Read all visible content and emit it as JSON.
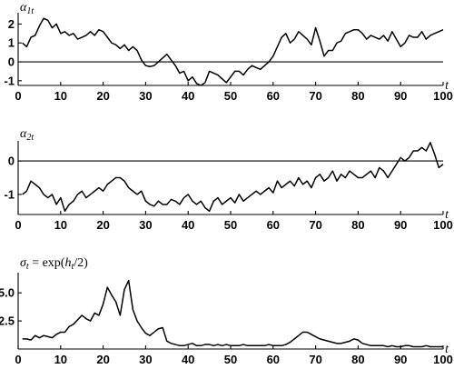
{
  "chart_data": [
    {
      "type": "line",
      "ylabel": "α1t",
      "xlabel": "t",
      "xlim": [
        0,
        100
      ],
      "ylim": [
        -1.25,
        2.6
      ],
      "xticks": [
        0,
        10,
        20,
        30,
        40,
        50,
        60,
        70,
        80,
        90,
        100
      ],
      "yticks": [
        -1,
        0,
        1,
        2
      ],
      "ref_line": 0,
      "series": [
        {
          "x": [
            1,
            2,
            3,
            4,
            5,
            6,
            7,
            8,
            9,
            10,
            11,
            12,
            13,
            14,
            15,
            16,
            17,
            18,
            19,
            20,
            21,
            22,
            23,
            24,
            25,
            26,
            27,
            28,
            29,
            30,
            31,
            32,
            33,
            34,
            35,
            36,
            37,
            38,
            39,
            40,
            41,
            42,
            43,
            44,
            45,
            46,
            47,
            48,
            49,
            50,
            51,
            52,
            53,
            54,
            55,
            56,
            57,
            58,
            59,
            60,
            61,
            62,
            63,
            64,
            65,
            66,
            67,
            68,
            69,
            70,
            71,
            72,
            73,
            74,
            75,
            76,
            77,
            78,
            79,
            80,
            81,
            82,
            83,
            84,
            85,
            86,
            87,
            88,
            89,
            90,
            91,
            92,
            93,
            94,
            95,
            96,
            97,
            98,
            99,
            100
          ],
          "values": [
            1.0,
            0.8,
            1.3,
            1.4,
            1.9,
            2.3,
            2.2,
            1.8,
            2.0,
            1.5,
            1.6,
            1.4,
            1.5,
            1.2,
            1.3,
            1.4,
            1.6,
            1.4,
            1.7,
            1.6,
            1.3,
            1.0,
            0.9,
            0.7,
            0.9,
            0.6,
            0.8,
            0.6,
            0.1,
            -0.2,
            -0.25,
            -0.2,
            0.0,
            0.2,
            0.4,
            0.1,
            -0.2,
            -0.6,
            -0.5,
            -1.0,
            -0.8,
            -1.15,
            -1.25,
            -1.1,
            -0.5,
            -0.6,
            -0.7,
            -0.9,
            -1.1,
            -0.8,
            -0.5,
            -0.5,
            -0.7,
            -0.4,
            -0.2,
            -0.3,
            -0.4,
            -0.2,
            0.0,
            0.3,
            0.8,
            1.3,
            1.5,
            1.0,
            1.2,
            1.6,
            1.4,
            1.2,
            0.9,
            1.8,
            1.1,
            0.3,
            0.6,
            0.6,
            1.0,
            1.1,
            1.5,
            1.6,
            1.7,
            1.7,
            1.5,
            1.2,
            1.4,
            1.3,
            1.2,
            1.4,
            1.1,
            1.6,
            1.2,
            0.8,
            1.0,
            1.4,
            1.3,
            1.3,
            1.6,
            1.2,
            1.4,
            1.5,
            1.6,
            1.7
          ]
        }
      ]
    },
    {
      "type": "line",
      "ylabel": "α2t",
      "xlabel": "t",
      "xlim": [
        0,
        100
      ],
      "ylim": [
        -1.6,
        0.6
      ],
      "xticks": [
        0,
        10,
        20,
        30,
        40,
        50,
        60,
        70,
        80,
        90,
        100
      ],
      "yticks": [
        -1,
        0
      ],
      "ref_line": 0,
      "series": [
        {
          "x": [
            1,
            2,
            3,
            4,
            5,
            6,
            7,
            8,
            9,
            10,
            11,
            12,
            13,
            14,
            15,
            16,
            17,
            18,
            19,
            20,
            21,
            22,
            23,
            24,
            25,
            26,
            27,
            28,
            29,
            30,
            31,
            32,
            33,
            34,
            35,
            36,
            37,
            38,
            39,
            40,
            41,
            42,
            43,
            44,
            45,
            46,
            47,
            48,
            49,
            50,
            51,
            52,
            53,
            54,
            55,
            56,
            57,
            58,
            59,
            60,
            61,
            62,
            63,
            64,
            65,
            66,
            67,
            68,
            69,
            70,
            71,
            72,
            73,
            74,
            75,
            76,
            77,
            78,
            79,
            80,
            81,
            82,
            83,
            84,
            85,
            86,
            87,
            88,
            89,
            90,
            91,
            92,
            93,
            94,
            95,
            96,
            97,
            98,
            99,
            100
          ],
          "values": [
            -1.0,
            -0.9,
            -0.6,
            -0.7,
            -0.8,
            -1.0,
            -1.1,
            -1.0,
            -1.3,
            -1.1,
            -1.5,
            -1.3,
            -1.2,
            -1.0,
            -0.9,
            -1.1,
            -1.0,
            -0.9,
            -0.8,
            -0.9,
            -0.7,
            -0.6,
            -0.5,
            -0.5,
            -0.6,
            -0.8,
            -0.9,
            -1.0,
            -0.9,
            -1.2,
            -1.3,
            -1.35,
            -1.2,
            -1.3,
            -1.3,
            -1.15,
            -1.2,
            -1.3,
            -1.1,
            -1.0,
            -1.2,
            -1.3,
            -1.2,
            -1.4,
            -1.5,
            -1.2,
            -1.1,
            -1.3,
            -1.2,
            -1.1,
            -1.25,
            -1.0,
            -1.2,
            -1.1,
            -1.0,
            -0.9,
            -1.0,
            -0.9,
            -0.8,
            -0.95,
            -0.6,
            -0.8,
            -0.7,
            -0.6,
            -0.75,
            -0.5,
            -0.7,
            -0.6,
            -0.8,
            -0.5,
            -0.4,
            -0.6,
            -0.5,
            -0.3,
            -0.6,
            -0.4,
            -0.5,
            -0.3,
            -0.4,
            -0.5,
            -0.5,
            -0.4,
            -0.3,
            -0.5,
            -0.2,
            -0.3,
            -0.5,
            -0.3,
            -0.1,
            0.1,
            0.0,
            0.1,
            0.3,
            0.3,
            0.4,
            0.3,
            0.55,
            0.2,
            -0.2,
            -0.1
          ]
        }
      ]
    },
    {
      "type": "line",
      "ylabel": "σt = exp(ht/2)",
      "xlabel": "t",
      "xlim": [
        0,
        100
      ],
      "ylim": [
        0,
        6.8
      ],
      "xticks": [
        0,
        10,
        20,
        30,
        40,
        50,
        60,
        70,
        80,
        90,
        100
      ],
      "yticks": [
        2.5,
        5.0
      ],
      "series": [
        {
          "x": [
            1,
            2,
            3,
            4,
            5,
            6,
            7,
            8,
            9,
            10,
            11,
            12,
            13,
            14,
            15,
            16,
            17,
            18,
            19,
            20,
            21,
            22,
            23,
            24,
            25,
            26,
            27,
            28,
            29,
            30,
            31,
            32,
            33,
            34,
            35,
            36,
            37,
            38,
            39,
            40,
            41,
            42,
            43,
            44,
            45,
            46,
            47,
            48,
            49,
            50,
            51,
            52,
            53,
            54,
            55,
            56,
            57,
            58,
            59,
            60,
            61,
            62,
            63,
            64,
            65,
            66,
            67,
            68,
            69,
            70,
            71,
            72,
            73,
            74,
            75,
            76,
            77,
            78,
            79,
            80,
            81,
            82,
            83,
            84,
            85,
            86,
            87,
            88,
            89,
            90,
            91,
            92,
            93,
            94,
            95,
            96,
            97,
            98,
            99,
            100
          ],
          "values": [
            0.9,
            0.9,
            0.8,
            1.2,
            1.0,
            1.2,
            1.1,
            1.0,
            1.3,
            1.5,
            1.5,
            2.0,
            2.2,
            2.6,
            3.0,
            2.7,
            2.5,
            3.2,
            3.0,
            4.0,
            5.5,
            4.8,
            4.2,
            3.0,
            5.3,
            6.1,
            3.5,
            2.5,
            1.9,
            1.4,
            1.2,
            1.5,
            1.8,
            1.9,
            0.7,
            0.5,
            0.4,
            0.3,
            0.3,
            0.4,
            0.5,
            0.3,
            0.3,
            0.4,
            0.4,
            0.3,
            0.4,
            0.3,
            0.4,
            0.3,
            0.3,
            0.3,
            0.4,
            0.3,
            0.3,
            0.3,
            0.3,
            0.3,
            0.4,
            0.3,
            0.3,
            0.3,
            0.4,
            0.6,
            0.9,
            1.2,
            1.5,
            1.5,
            1.3,
            1.1,
            0.9,
            0.8,
            0.7,
            0.6,
            0.5,
            0.5,
            0.6,
            0.7,
            0.9,
            0.8,
            0.5,
            0.4,
            0.3,
            0.3,
            0.3,
            0.3,
            0.2,
            0.3,
            0.2,
            0.2,
            0.3,
            0.3,
            0.2,
            0.2,
            0.2,
            0.3,
            0.2,
            0.2,
            0.2,
            0.2
          ]
        }
      ]
    }
  ]
}
